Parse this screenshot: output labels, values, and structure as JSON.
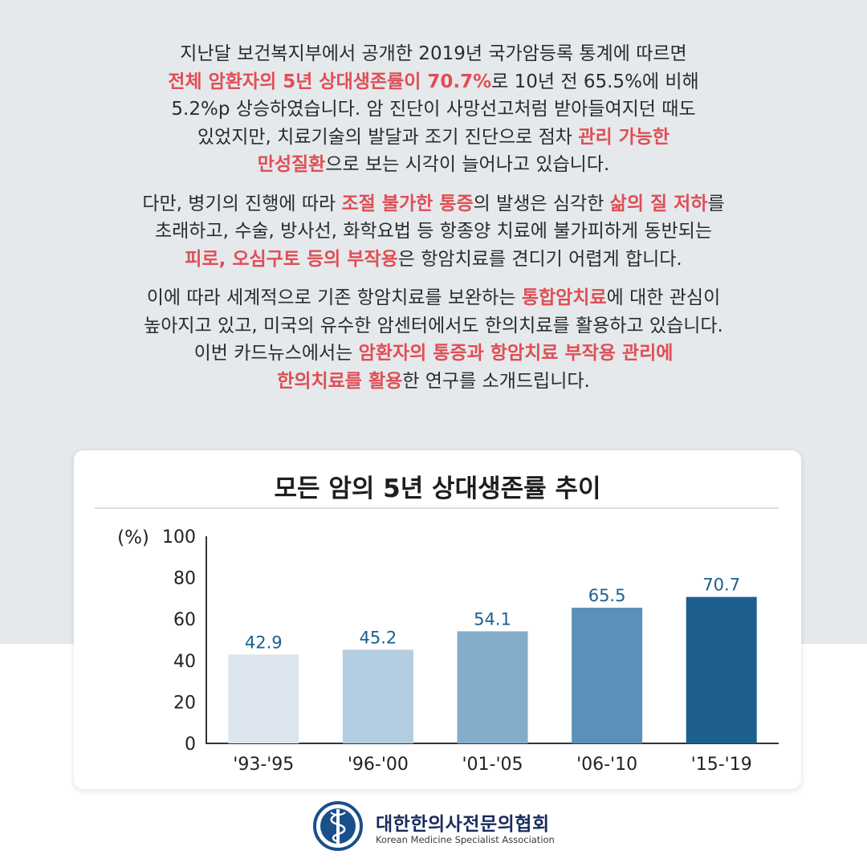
{
  "intro": {
    "p1": [
      [
        {
          "t": "지난달 보건복지부에서 공개한 2019년 국가암등록 통계에 따르면"
        }
      ],
      [
        {
          "t": "전체 암환자의 5년 상대생존률이 70.7%",
          "hl": true
        },
        {
          "t": "로 10년 전 65.5%에 비해"
        }
      ],
      [
        {
          "t": "5.2%p 상승하였습니다. 암 진단이 사망선고처럼 받아들여지던 때도"
        }
      ],
      [
        {
          "t": "있었지만, 치료기술의 발달과 조기 진단으로 점차 "
        },
        {
          "t": "관리 가능한",
          "hl": true
        }
      ],
      [
        {
          "t": "만성질환",
          "hl": true
        },
        {
          "t": "으로 보는 시각이 늘어나고 있습니다."
        }
      ]
    ],
    "p2": [
      [
        {
          "t": "다만, 병기의 진행에 따라 "
        },
        {
          "t": "조절 불가한 통증",
          "hl": true
        },
        {
          "t": "의 발생은 심각한 "
        },
        {
          "t": "삶의 질 저하",
          "hl": true
        },
        {
          "t": "를"
        }
      ],
      [
        {
          "t": "초래하고, 수술, 방사선, 화학요법 등 항종양 치료에 불가피하게 동반되는"
        }
      ],
      [
        {
          "t": "피로, 오심구토 등의 부작용",
          "hl": true
        },
        {
          "t": "은 항암치료를 견디기 어렵게 합니다."
        }
      ]
    ],
    "p3": [
      [
        {
          "t": "이에 따라 세계적으로 기존 항암치료를 보완하는 "
        },
        {
          "t": "통합암치료",
          "hl": true
        },
        {
          "t": "에 대한 관심이"
        }
      ],
      [
        {
          "t": "높아지고 있고, 미국의 유수한 암센터에서도 한의치료를 활용하고 있습니다."
        }
      ],
      [
        {
          "t": "이번 카드뉴스에서는 "
        },
        {
          "t": "암환자의 통증과 항암치료 부작용 관리에",
          "hl": true
        }
      ],
      [
        {
          "t": "한의치료를 활용",
          "hl": true
        },
        {
          "t": "한 연구를 소개드립니다."
        }
      ]
    ]
  },
  "chart_data": {
    "type": "bar",
    "title": "모든 암의 5년 상대생존률 추이",
    "ylabel": "(%)",
    "xlabel": "",
    "categories": [
      "'93-'95",
      "'96-'00",
      "'01-'05",
      "'06-'10",
      "'15-'19"
    ],
    "values": [
      42.9,
      45.2,
      54.1,
      65.5,
      70.7
    ],
    "ylim": [
      0,
      100
    ],
    "yticks": [
      0,
      20,
      40,
      60,
      80,
      100
    ],
    "grid": false,
    "bar_colors": [
      "#dce5ed",
      "#b3cde0",
      "#84adc9",
      "#5b91b8",
      "#1c5f8f"
    ],
    "label_color": "#1c5f8f"
  },
  "logo": {
    "name_kr": "대한한의사전문의협회",
    "name_en": "Korean Medicine Specialist Association",
    "color": "#1a4f8a"
  }
}
